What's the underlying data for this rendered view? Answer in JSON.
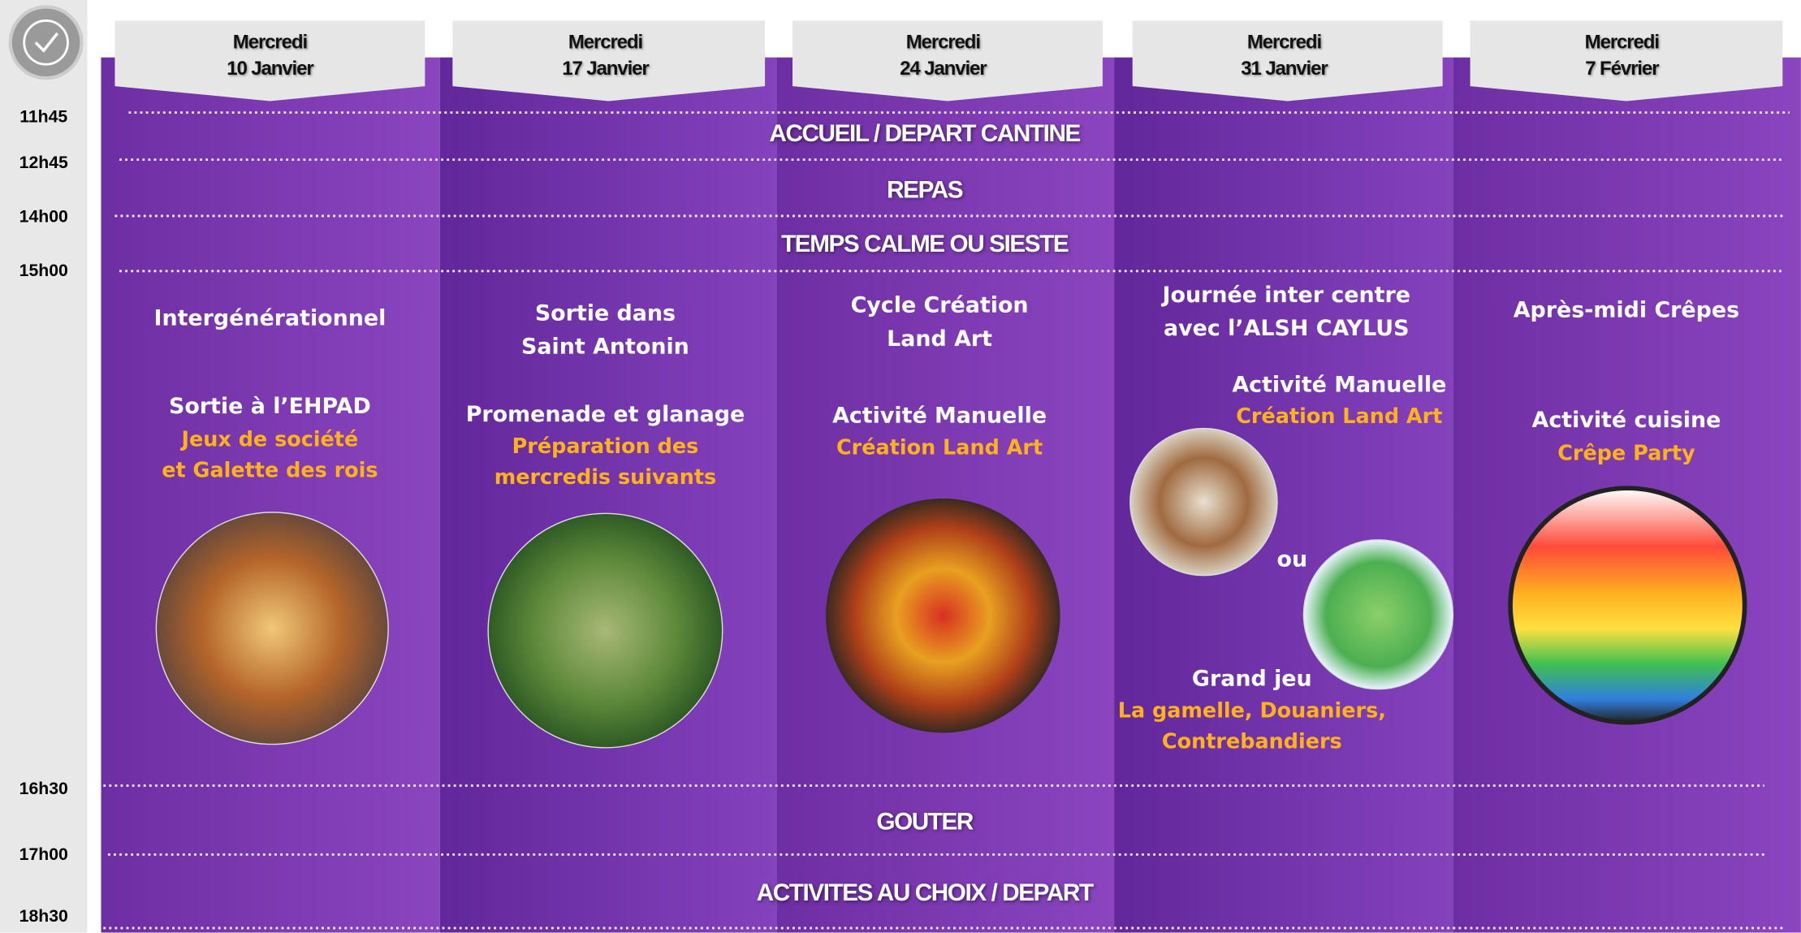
{
  "times": [
    "11h45",
    "12h45",
    "14h00",
    "15h00",
    "16h30",
    "17h00",
    "18h30"
  ],
  "days": [
    {
      "weekday": "Mercredi",
      "date": "10 Janvier"
    },
    {
      "weekday": "Mercredi",
      "date": "17 Janvier"
    },
    {
      "weekday": "Mercredi",
      "date": "24 Janvier"
    },
    {
      "weekday": "Mercredi",
      "date": "31 Janvier"
    },
    {
      "weekday": "Mercredi",
      "date": "7 Février"
    }
  ],
  "slots": [
    "ACCUEIL / DEPART CANTINE",
    "REPAS",
    "TEMPS CALME OU SIESTE",
    "GOUTER",
    "ACTIVITES AU CHOIX / DEPART"
  ],
  "columns": [
    {
      "theme": [
        "Intergénérationnel"
      ],
      "activity": [
        "Sortie à l’EHPAD"
      ],
      "details": [
        "Jeux de société",
        "et Galette des rois"
      ]
    },
    {
      "theme": [
        "Sortie dans",
        "Saint Antonin"
      ],
      "activity": [
        "Promenade et glanage"
      ],
      "details": [
        "Préparation des",
        "mercredis suivants"
      ]
    },
    {
      "theme": [
        "Cycle Création",
        "Land Art"
      ],
      "activity": [
        "Activité Manuelle"
      ],
      "details": [
        "Création Land Art"
      ]
    },
    {
      "theme": [
        "Journée inter centre",
        "avec l’ALSH CAYLUS"
      ],
      "activity": [
        "Activité Manuelle"
      ],
      "details": [
        "Création Land Art"
      ],
      "or": "ou",
      "game": [
        "Grand jeu"
      ],
      "game_details": [
        "La gamelle, Douaniers,",
        "Contrebandiers"
      ]
    },
    {
      "theme": [
        "Après-midi Crêpes"
      ],
      "activity": [
        "Activité cuisine"
      ],
      "details": [
        "Crêpe Party"
      ]
    }
  ]
}
